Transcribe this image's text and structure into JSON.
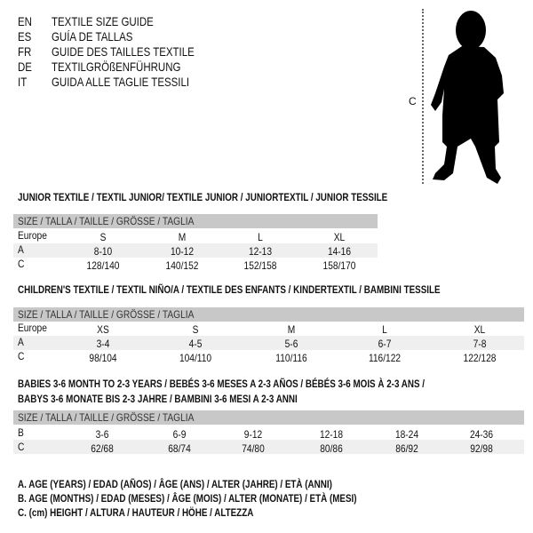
{
  "languages": [
    {
      "code": "EN",
      "title": "TEXTILE SIZE GUIDE"
    },
    {
      "code": "ES",
      "title": "GUÍA DE TALLAS"
    },
    {
      "code": "FR",
      "title": "GUIDE DES TAILLES TEXTILE"
    },
    {
      "code": "DE",
      "title": "TEXTILGRÖßENFÜHRUNG"
    },
    {
      "code": "IT",
      "title": "GUIDA ALLE TAGLIE TESSILI"
    }
  ],
  "figure": {
    "height_label": "C",
    "icon": "child-silhouette"
  },
  "size_header": "SIZE / TALLA / TAILLE / GRÖSSE / TAGLIA",
  "junior": {
    "title": "JUNIOR TEXTILE / TEXTIL JUNIOR/ TEXTILE JUNIOR / JUNIORTEXTIL / JUNIOR TESSILE",
    "rows": [
      {
        "label": "Europe",
        "values": [
          "S",
          "M",
          "L",
          "XL"
        ]
      },
      {
        "label": "A",
        "values": [
          "8-10",
          "10-12",
          "12-13",
          "14-16"
        ]
      },
      {
        "label": "C",
        "values": [
          "128/140",
          "140/152",
          "152/158",
          "158/170"
        ]
      }
    ]
  },
  "children": {
    "title": "CHILDREN'S TEXTILE / TEXTIL NIÑO/A / TEXTILE DES ENFANTS / KINDERTEXTIL / BAMBINI TESSILE",
    "rows": [
      {
        "label": "Europe",
        "values": [
          "XS",
          "S",
          "M",
          "L",
          "XL"
        ]
      },
      {
        "label": "A",
        "values": [
          "3-4",
          "4-5",
          "5-6",
          "6-7",
          "7-8"
        ]
      },
      {
        "label": "C",
        "values": [
          "98/104",
          "104/110",
          "110/116",
          "116/122",
          "122/128"
        ]
      }
    ]
  },
  "babies": {
    "title_line1": "BABIES 3-6 MONTH TO 2-3 YEARS / BEBÉS 3-6 MESES A 2-3 AÑOS / BÉBÉS 3-6 MOIS À 2-3 ANS /",
    "title_line2": "BABYS 3-6 MONATE BIS 2-3 JAHRE / BAMBINI 3-6 MESI A 2-3 ANNI",
    "rows": [
      {
        "label": "B",
        "values": [
          "3-6",
          "6-9",
          "9-12",
          "12-18",
          "18-24",
          "24-36"
        ]
      },
      {
        "label": "C",
        "values": [
          "62/68",
          "68/74",
          "74/80",
          "80/86",
          "86/92",
          "92/98"
        ]
      }
    ]
  },
  "legend": [
    "A. AGE (YEARS) / EDAD (AÑOS) / ÂGE (ANS) / ALTER (JAHRE) / ETÀ (ANNI)",
    "B. AGE (MONTHS) / EDAD (MESES) / ÂGE (MOIS) / ALTER (MONATE) / ETÀ (MESI)",
    "C. (cm) HEIGHT / ALTURA / HAUTEUR / HÖHE / ALTEZZA"
  ],
  "colors": {
    "header_bar": "#c8c8c8",
    "band": "#efefef"
  }
}
